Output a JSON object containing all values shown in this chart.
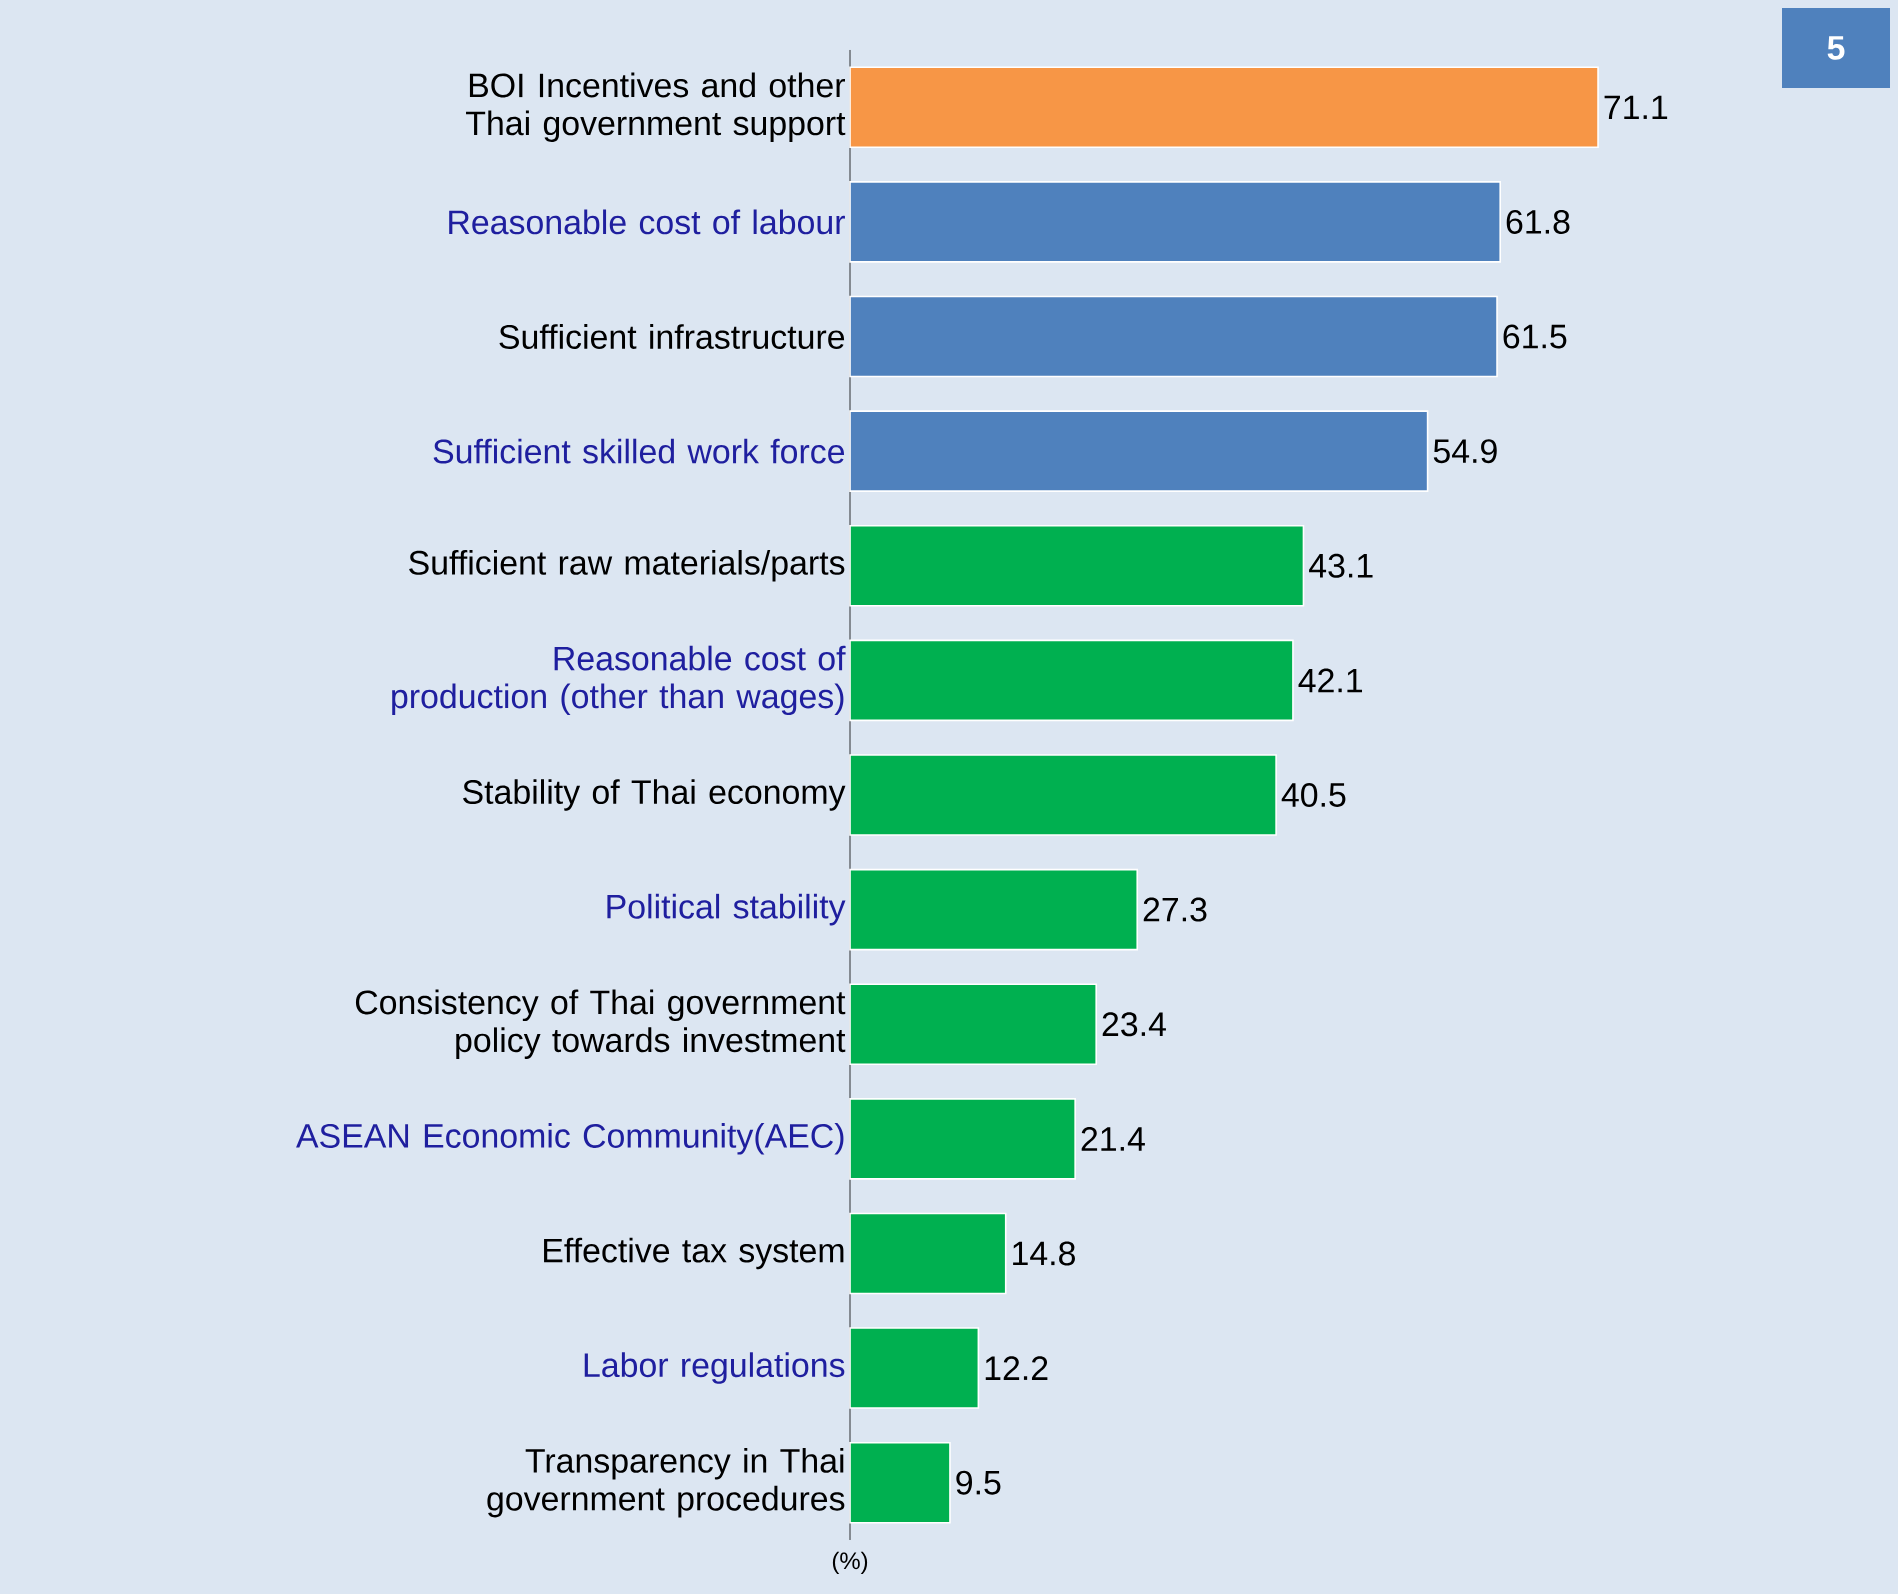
{
  "chart_data": {
    "type": "bar",
    "orientation": "horizontal",
    "categories": [
      "BOI Incentives and other Thai government support",
      "Reasonable cost of labour",
      "Sufficient infrastructure",
      "Sufficient skilled work force",
      "Sufficient raw materials/parts",
      "Reasonable cost of production (other than wages)",
      "Stability of Thai economy",
      "Political stability",
      "Consistency of Thai government policy towards investment",
      "ASEAN Economic Community(AEC)",
      "Effective tax system",
      "Labor regulations",
      "Transparency in Thai government procedures"
    ],
    "values": [
      71.1,
      61.8,
      61.5,
      54.9,
      43.1,
      42.1,
      40.5,
      27.3,
      23.4,
      21.4,
      14.8,
      12.2,
      9.5
    ],
    "colors": [
      "#f79646",
      "#4f81bd",
      "#4f81bd",
      "#4f81bd",
      "#00b050",
      "#00b050",
      "#00b050",
      "#00b050",
      "#00b050",
      "#00b050",
      "#00b050",
      "#00b050",
      "#00b050"
    ],
    "xlabel": "(%)",
    "data_labels": true,
    "tick_labels": "y",
    "annotations": [
      "5"
    ]
  }
}
